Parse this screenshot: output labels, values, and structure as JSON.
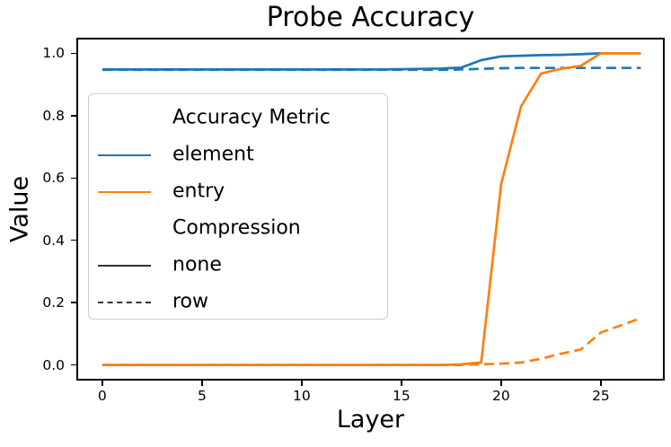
{
  "chart": {
    "title": "Probe Accuracy",
    "xlabel": "Layer",
    "ylabel": "Value"
  },
  "legend": {
    "items": [
      {
        "label": "Accuracy Metric",
        "color": null,
        "dash": false
      },
      {
        "label": "element",
        "color": "#1f77b4",
        "dash": false
      },
      {
        "label": "entry",
        "color": "#ff7f0e",
        "dash": false
      },
      {
        "label": "Compression",
        "color": null,
        "dash": false
      },
      {
        "label": "none",
        "color": "#333333",
        "dash": false
      },
      {
        "label": "row",
        "color": "#333333",
        "dash": true
      }
    ]
  },
  "chart_data": {
    "type": "line",
    "title": "Probe Accuracy",
    "xlabel": "Layer",
    "ylabel": "Value",
    "xlim": [
      -1.3,
      28.2
    ],
    "ylim": [
      -0.05,
      1.05
    ],
    "grid": false,
    "legend_position": "upper left",
    "x_ticks": [
      0,
      5,
      10,
      15,
      20,
      25
    ],
    "x_tick_labels": [
      "0",
      "5",
      "10",
      "15",
      "20",
      "25"
    ],
    "y_ticks": [
      0.0,
      0.2,
      0.4,
      0.6,
      0.8,
      1.0
    ],
    "y_tick_labels": [
      "0.0",
      "0.2",
      "0.4",
      "0.6",
      "0.8",
      "1.0"
    ],
    "x": [
      0,
      1,
      2,
      3,
      4,
      5,
      6,
      7,
      8,
      9,
      10,
      11,
      12,
      13,
      14,
      15,
      16,
      17,
      18,
      19,
      20,
      21,
      22,
      23,
      24,
      25,
      26,
      27
    ],
    "series": [
      {
        "name": "element-row",
        "accuracy_metric": "element",
        "compression": "row",
        "color": "#1f77b4",
        "dash": true,
        "values": [
          0.947,
          0.947,
          0.947,
          0.947,
          0.947,
          0.947,
          0.947,
          0.947,
          0.947,
          0.947,
          0.947,
          0.947,
          0.947,
          0.947,
          0.947,
          0.947,
          0.947,
          0.947,
          0.948,
          0.95,
          0.952,
          0.953,
          0.953,
          0.953,
          0.953,
          0.953,
          0.953,
          0.953
        ]
      },
      {
        "name": "element-none",
        "accuracy_metric": "element",
        "compression": "none",
        "color": "#1f77b4",
        "dash": false,
        "values": [
          0.948,
          0.948,
          0.948,
          0.948,
          0.948,
          0.948,
          0.948,
          0.948,
          0.948,
          0.948,
          0.948,
          0.948,
          0.948,
          0.948,
          0.948,
          0.949,
          0.95,
          0.951,
          0.954,
          0.978,
          0.99,
          0.992,
          0.994,
          0.995,
          0.997,
          1.0,
          1.0,
          1.0
        ]
      },
      {
        "name": "entry-row",
        "accuracy_metric": "entry",
        "compression": "row",
        "color": "#ff7f0e",
        "dash": true,
        "values": [
          0,
          0,
          0,
          0,
          0,
          0,
          0,
          0,
          0,
          0,
          0,
          0,
          0,
          0,
          0,
          0,
          0,
          0,
          0,
          0.002,
          0.004,
          0.008,
          0.02,
          0.036,
          0.05,
          0.104,
          0.127,
          0.15
        ]
      },
      {
        "name": "entry-none",
        "accuracy_metric": "entry",
        "compression": "none",
        "color": "#ff7f0e",
        "dash": false,
        "values": [
          0,
          0,
          0,
          0,
          0,
          0,
          0,
          0,
          0,
          0,
          0,
          0,
          0,
          0,
          0,
          0,
          0,
          0,
          0.002,
          0.008,
          0.58,
          0.83,
          0.935,
          0.95,
          0.96,
          1.0,
          1.0,
          1.0
        ]
      }
    ]
  }
}
